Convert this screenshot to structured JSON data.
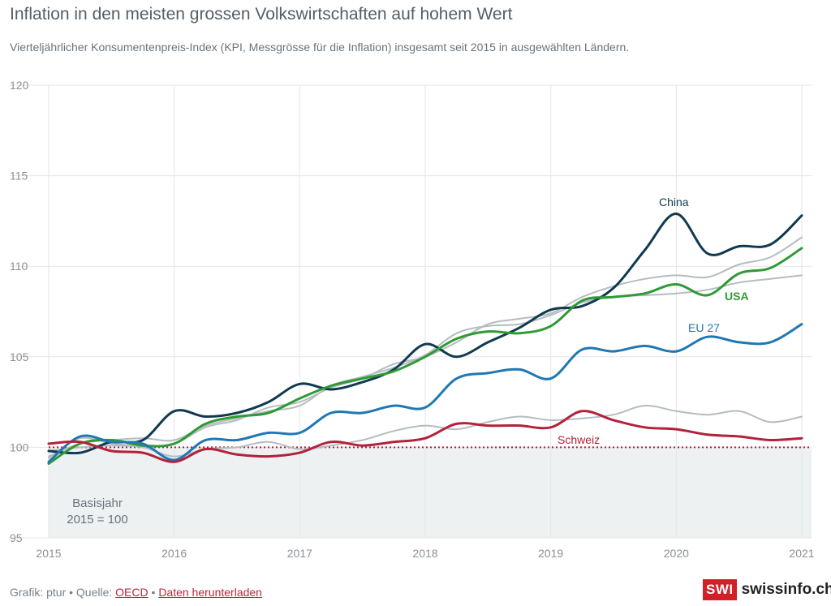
{
  "header": {
    "title": "Inflation in den meisten grossen Volkswirtschaften auf hohem Wert",
    "subtitle": "Vierteljährlicher Konsumentenpreis-Index (KPI, Messgrösse für die Inflation) insgesamt seit 2015 in ausgewählten Ländern."
  },
  "footer": {
    "prefix": "Grafik: ptur • Quelle: ",
    "source_link": "OECD",
    "separator": " • ",
    "download_link": "Daten herunterladen",
    "logo_mark": "SWI",
    "logo_text": "swissinfo.ch"
  },
  "chart_data": {
    "type": "line",
    "xlim": [
      2015,
      2021
    ],
    "ylim": [
      95,
      120
    ],
    "yticks": [
      95,
      100,
      105,
      110,
      115,
      120
    ],
    "xticks": [
      2015,
      2016,
      2017,
      2018,
      2019,
      2020,
      2021
    ],
    "grid": true,
    "baseline": 100,
    "baseline_label": [
      "Basisjahr",
      "2015 = 100"
    ],
    "colors": {
      "China": "#0f3a4f",
      "USA": "#2f9a35",
      "EU 27": "#1f78b4",
      "Schweiz": "#b3213b",
      "other": "#b5bcc0"
    },
    "x": [
      2015.0,
      2015.25,
      2015.5,
      2015.75,
      2016.0,
      2016.25,
      2016.5,
      2016.75,
      2017.0,
      2017.25,
      2017.5,
      2017.75,
      2018.0,
      2018.25,
      2018.5,
      2018.75,
      2019.0,
      2019.25,
      2019.5,
      2019.75,
      2020.0,
      2020.25,
      2020.5,
      2020.75,
      2021.0
    ],
    "series": [
      {
        "name": "",
        "role": "other",
        "values": [
          99.4,
          100.5,
          100.2,
          100.1,
          100.2,
          101.1,
          101.5,
          102.2,
          102.5,
          103.3,
          103.8,
          104.6,
          105.0,
          105.8,
          106.8,
          107.1,
          107.4,
          108.3,
          108.9,
          109.3,
          109.5,
          109.4,
          110.1,
          110.5,
          111.6
        ]
      },
      {
        "name": "",
        "role": "other",
        "values": [
          99.5,
          100.2,
          100.4,
          100.5,
          100.4,
          101.2,
          101.6,
          102.0,
          102.3,
          103.4,
          103.9,
          104.4,
          105.1,
          106.3,
          106.7,
          106.8,
          107.3,
          108.0,
          108.3,
          108.4,
          108.5,
          108.7,
          109.1,
          109.3,
          109.5
        ]
      },
      {
        "name": "",
        "role": "other",
        "values": [
          99.8,
          100.0,
          100.1,
          100.0,
          99.5,
          99.9,
          100.0,
          100.3,
          99.9,
          100.1,
          100.4,
          100.9,
          101.2,
          101.0,
          101.4,
          101.7,
          101.5,
          101.6,
          101.8,
          102.3,
          102.0,
          101.8,
          102.0,
          101.4,
          101.7
        ]
      },
      {
        "name": "China",
        "values": [
          99.8,
          99.7,
          100.3,
          100.4,
          102.0,
          101.7,
          101.9,
          102.5,
          103.5,
          103.2,
          103.6,
          104.3,
          105.7,
          105.0,
          105.8,
          106.6,
          107.6,
          107.8,
          108.8,
          110.9,
          112.9,
          110.7,
          111.1,
          111.2,
          112.8
        ]
      },
      {
        "name": "USA",
        "values": [
          99.1,
          100.2,
          100.4,
          100.1,
          100.2,
          101.3,
          101.7,
          101.9,
          102.7,
          103.4,
          103.8,
          104.2,
          105.0,
          106.0,
          106.4,
          106.3,
          106.7,
          108.1,
          108.3,
          108.5,
          109.0,
          108.4,
          109.6,
          109.9,
          111.0
        ]
      },
      {
        "name": "EU 27",
        "values": [
          99.2,
          100.6,
          100.3,
          100.2,
          99.3,
          100.4,
          100.4,
          100.8,
          100.8,
          101.9,
          101.9,
          102.3,
          102.2,
          103.8,
          104.1,
          104.3,
          103.8,
          105.4,
          105.3,
          105.6,
          105.3,
          106.1,
          105.8,
          105.8,
          106.8
        ]
      },
      {
        "name": "Schweiz",
        "values": [
          100.2,
          100.3,
          99.8,
          99.7,
          99.2,
          99.9,
          99.6,
          99.5,
          99.7,
          100.3,
          100.1,
          100.3,
          100.5,
          101.3,
          101.2,
          101.2,
          101.1,
          102.0,
          101.5,
          101.1,
          101.0,
          100.7,
          100.6,
          100.4,
          100.5
        ]
      }
    ]
  }
}
